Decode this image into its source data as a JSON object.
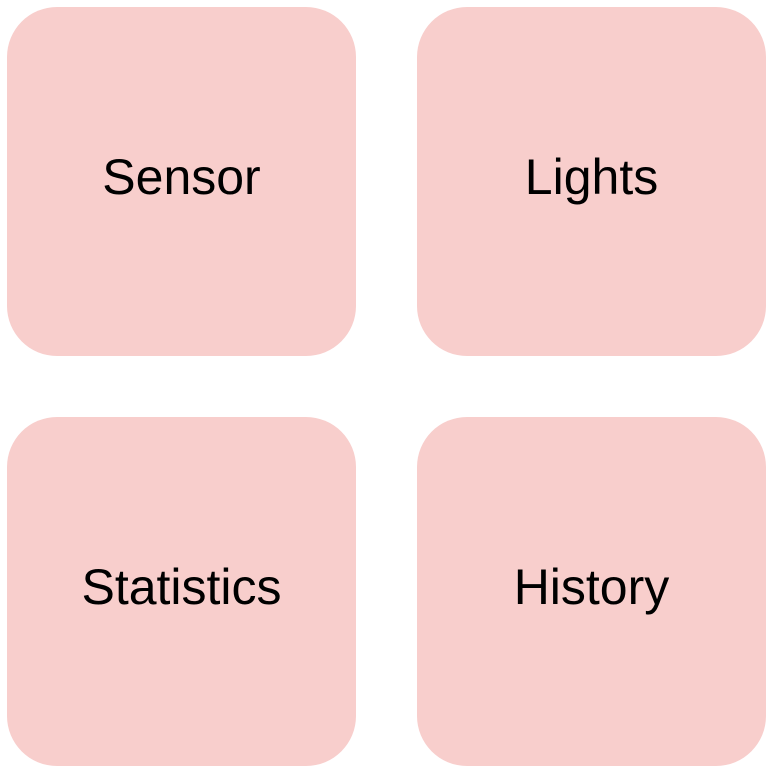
{
  "theme": {
    "tile_color": "#f8cecc",
    "text_color": "#000000",
    "background": "#ffffff"
  },
  "tiles": [
    {
      "label": "Sensor"
    },
    {
      "label": "Lights"
    },
    {
      "label": "Statistics"
    },
    {
      "label": "History"
    }
  ]
}
